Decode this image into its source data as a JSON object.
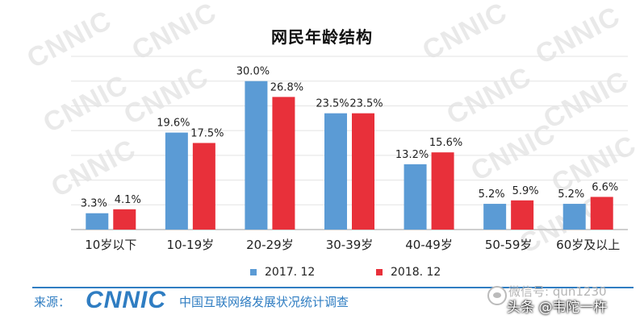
{
  "watermark_text": "CNNIC",
  "chart_data": {
    "type": "bar",
    "title": "网民年龄结构",
    "xlabel": "",
    "ylabel": "",
    "ylim": [
      0,
      35
    ],
    "grid": true,
    "categories": [
      "10岁以下",
      "10-19岁",
      "20-29岁",
      "30-39岁",
      "40-49岁",
      "50-59岁",
      "60岁及以上"
    ],
    "series": [
      {
        "name": "2017. 12",
        "color": "#5b9bd5",
        "values": [
          3.3,
          19.6,
          30.0,
          23.5,
          13.2,
          5.2,
          5.2
        ]
      },
      {
        "name": "2018. 12",
        "color": "#e8303a",
        "values": [
          4.1,
          17.5,
          26.8,
          23.5,
          15.6,
          5.9,
          6.6
        ]
      }
    ],
    "value_suffix": "%",
    "legend_position": "bottom"
  },
  "footer": {
    "source_label": "来源：",
    "logo_text": "CNNIC",
    "org_name": "中国互联网络发展状况统计调查",
    "accent_color": "#2f7dc2"
  },
  "overlay": {
    "wechat_id": "微信号: qun1230",
    "toutiao_text": "头条 @韦陀一杵"
  }
}
